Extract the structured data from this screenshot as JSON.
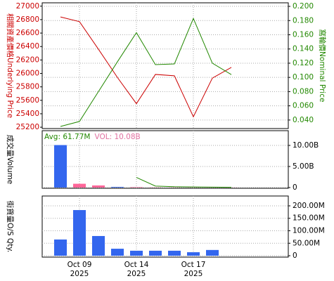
{
  "chart_data": [
    {
      "type": "line",
      "ylabel": "相關資產價格Underlying Price",
      "y2label": "窩輪價Nominal Price",
      "ylim": [
        25180,
        27050
      ],
      "yticks": [
        25200,
        25400,
        25600,
        25800,
        26000,
        26200,
        26400,
        26600,
        26800,
        27000
      ],
      "y2lim": [
        0.028,
        0.205
      ],
      "y2ticks": [
        {
          "value": 0.04,
          "label": "0.040"
        },
        {
          "value": 0.06,
          "label": "0.060"
        },
        {
          "value": 0.08,
          "label": "0.080"
        },
        {
          "value": 0.1,
          "label": "0.100"
        },
        {
          "value": 0.12,
          "label": "0.120"
        },
        {
          "value": 0.14,
          "label": "0.140"
        },
        {
          "value": 0.16,
          "label": "0.160"
        },
        {
          "value": 0.18,
          "label": "0.180"
        },
        {
          "value": 0.2,
          "label": "0.200"
        }
      ],
      "series": [
        {
          "name": "Underlying Price",
          "color": "#cc0000",
          "values": [
            26840,
            26770,
            26360,
            25940,
            25550,
            25985,
            25965,
            25355,
            25930,
            26090
          ]
        },
        {
          "name": "Nominal Price",
          "color": "#228800",
          "axis": "y2",
          "values": [
            0.031,
            0.038,
            0.08,
            0.122,
            0.163,
            0.118,
            0.119,
            0.183,
            0.12,
            0.104
          ]
        }
      ],
      "grid": true
    },
    {
      "type": "bar",
      "ylabel": "成交量Volume",
      "ylim": [
        -170000000,
        13500000000
      ],
      "yticks": [
        {
          "value": 0,
          "label": "0"
        },
        {
          "value": 5000000000,
          "label": "5.00B"
        },
        {
          "value": 10000000000,
          "label": "10.00B"
        }
      ],
      "annotations": [
        {
          "text": "Avg: 61.77M",
          "color": "#228800"
        },
        {
          "text": "VOL: 10.08B",
          "color": "#e070a0"
        }
      ],
      "values": [
        10080000000,
        900000000,
        500000000,
        150000000,
        100000000,
        40000000,
        30000000,
        20000000,
        20000000,
        20000000
      ],
      "colors": [
        "#3366ee",
        "#ff6699",
        "#ff6699",
        "#3366ee",
        "#ff6699",
        "#ff6699",
        "#ff6699",
        "#ff6699",
        "#ff6699",
        "#ff6699"
      ],
      "line": {
        "color": "#228800",
        "values": [
          null,
          null,
          null,
          null,
          2400000000,
          350000000,
          200000000,
          150000000,
          100000000,
          60000000
        ]
      },
      "grid": true
    },
    {
      "type": "bar",
      "ylabel": "街貨量O/S Qty.",
      "ylim": [
        -5600000,
        239400000
      ],
      "yticks": [
        {
          "value": 0,
          "label": "0"
        },
        {
          "value": 50000000,
          "label": "50.00M"
        },
        {
          "value": 100000000,
          "label": "100.00M"
        },
        {
          "value": 150000000,
          "label": "150.00M"
        },
        {
          "value": 200000000,
          "label": "200.00M"
        }
      ],
      "categories": [
        null,
        "Oct 09\n2025",
        null,
        null,
        "Oct 14\n2025",
        null,
        null,
        "Oct 17\n2025",
        null,
        null
      ],
      "values": [
        65000000,
        183000000,
        79000000,
        28000000,
        20000000,
        20000000,
        20000000,
        14000000,
        23000000,
        0
      ],
      "color": "#3366ee",
      "grid": true
    }
  ]
}
